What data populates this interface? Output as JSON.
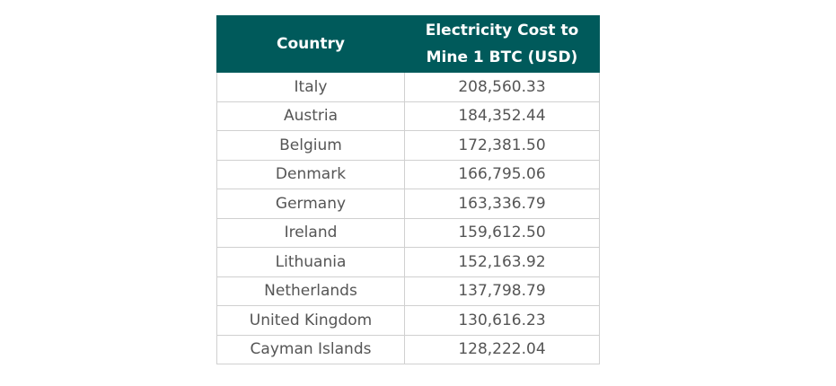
{
  "chart_data": {
    "type": "table",
    "columns": [
      "Country",
      "Electricity Cost to Mine 1 BTC (USD)"
    ],
    "rows": [
      {
        "country": "Italy",
        "cost": "208,560.33"
      },
      {
        "country": "Austria",
        "cost": "184,352.44"
      },
      {
        "country": "Belgium",
        "cost": "172,381.50"
      },
      {
        "country": "Denmark",
        "cost": "166,795.06"
      },
      {
        "country": "Germany",
        "cost": "163,336.79"
      },
      {
        "country": "Ireland",
        "cost": "159,612.50"
      },
      {
        "country": "Lithuania",
        "cost": "152,163.92"
      },
      {
        "country": "Netherlands",
        "cost": "137,798.79"
      },
      {
        "country": "United Kingdom",
        "cost": "130,616.23"
      },
      {
        "country": "Cayman Islands",
        "cost": "128,222.04"
      }
    ]
  },
  "colors": {
    "header_bg": "#005a5b",
    "header_text": "#ffffff",
    "cell_text": "#555555",
    "border": "#d0d0d0"
  }
}
